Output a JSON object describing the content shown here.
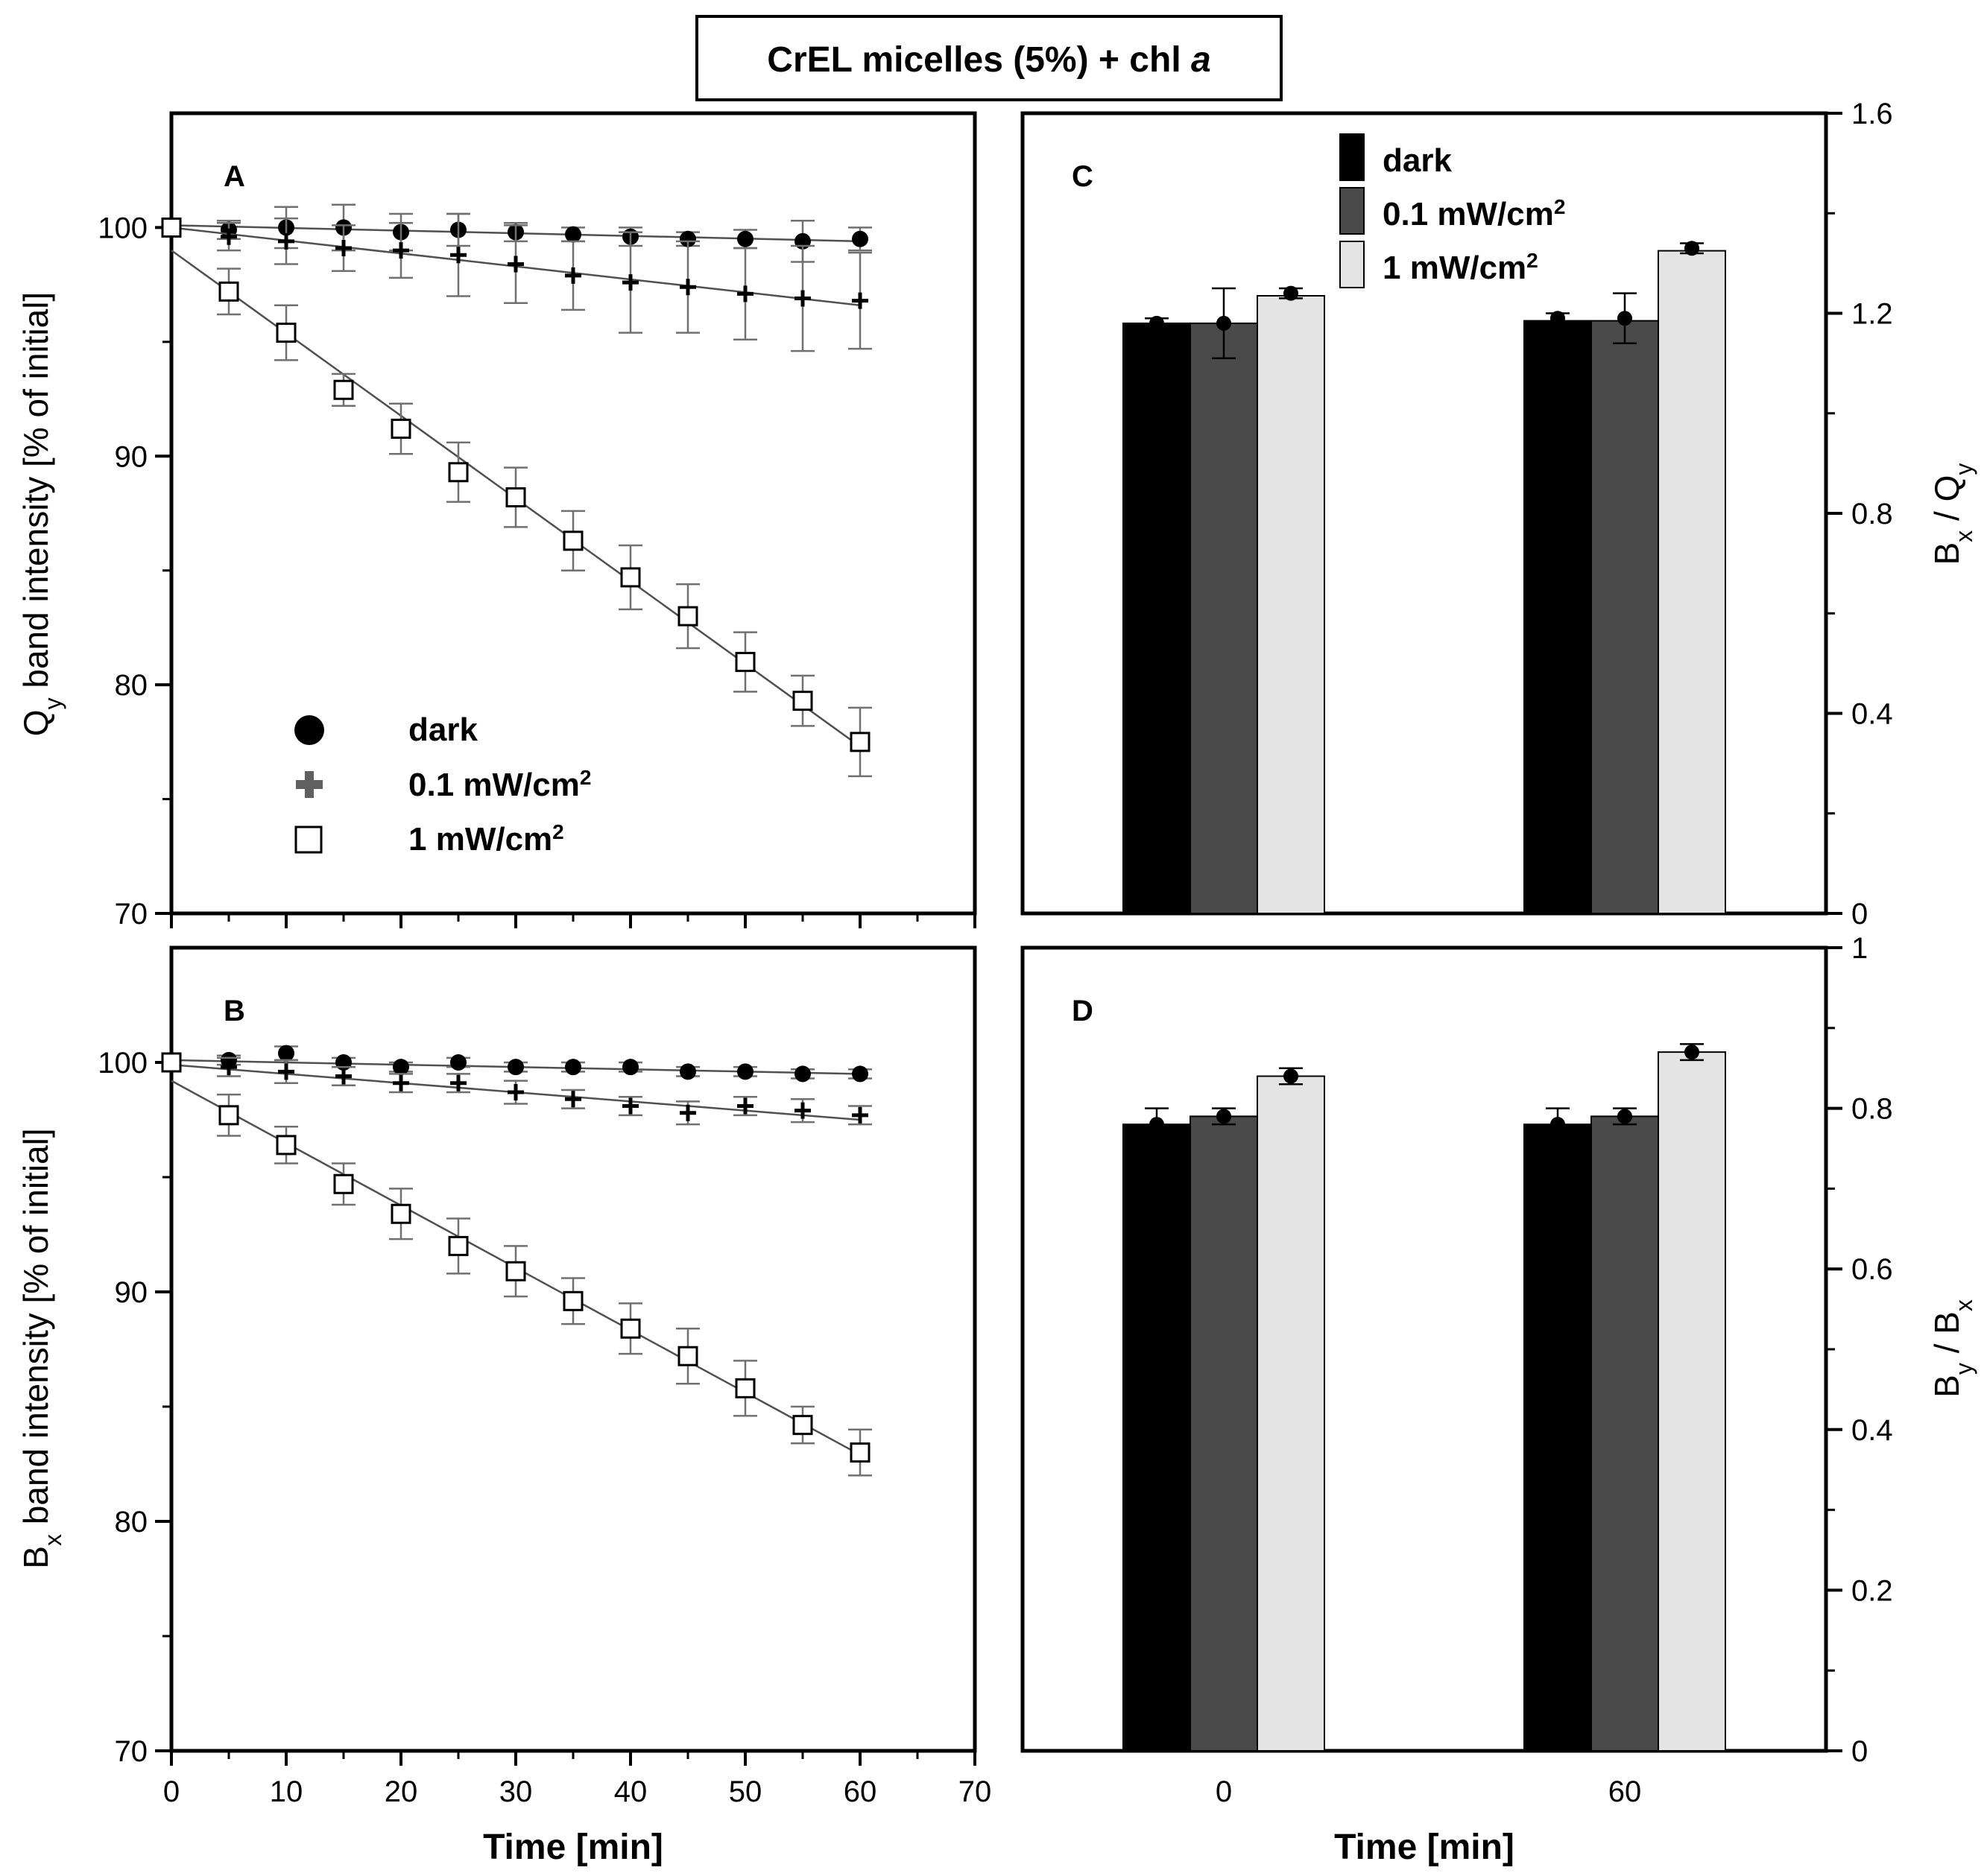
{
  "figure_title": {
    "main": "CrEL micelles (5%) + chl ",
    "italic": "a"
  },
  "colors": {
    "dark": "#000000",
    "low": "#4a4a4a",
    "high": "#e4e4e4",
    "err": "#707070",
    "fit": "#505050"
  },
  "chart_data": [
    {
      "panel": "A",
      "type": "scatter",
      "x": [
        0,
        5,
        10,
        15,
        20,
        25,
        30,
        35,
        40,
        45,
        50,
        55,
        60
      ],
      "xlim": [
        0,
        70
      ],
      "xticks": [
        0,
        10,
        20,
        30,
        40,
        50,
        60,
        70
      ],
      "ylim": [
        70,
        105
      ],
      "yticks": [
        70,
        80,
        90,
        100
      ],
      "ylabel": {
        "main": "Q",
        "sub": "y",
        "rest": " band intensity [% of initial]"
      },
      "xlabel": "",
      "series": [
        {
          "name": "dark",
          "marker": "circle",
          "values": [
            100,
            99.9,
            100.0,
            100.0,
            99.8,
            99.9,
            99.8,
            99.7,
            99.6,
            99.5,
            99.5,
            99.4,
            99.5
          ],
          "errors": [
            0,
            0.4,
            0.9,
            1.0,
            0.8,
            0.7,
            0.4,
            0.3,
            0.4,
            0.3,
            0.4,
            0.9,
            0.5
          ],
          "fit": [
            100.1,
            99.4
          ]
        },
        {
          "name": "0.1 mW/cm²",
          "marker": "plus",
          "values": [
            100,
            99.6,
            99.4,
            99.1,
            99.0,
            98.8,
            98.4,
            97.9,
            97.6,
            97.4,
            97.1,
            96.9,
            96.8
          ],
          "errors": [
            0,
            0.6,
            1.0,
            1.0,
            1.2,
            1.8,
            1.7,
            1.5,
            2.2,
            2.0,
            2.0,
            2.3,
            2.1
          ],
          "fit": [
            100.0,
            96.6
          ]
        },
        {
          "name": "1 mW/cm²",
          "marker": "square",
          "values": [
            100,
            97.2,
            95.4,
            92.9,
            91.2,
            89.3,
            88.2,
            86.3,
            84.7,
            83.0,
            81.0,
            79.3,
            77.5
          ],
          "errors": [
            0,
            1.0,
            1.2,
            0.7,
            1.1,
            1.3,
            1.3,
            1.3,
            1.4,
            1.4,
            1.3,
            1.1,
            1.5
          ],
          "fit": [
            99.0,
            77.3
          ]
        }
      ],
      "legend": [
        {
          "label": "dark",
          "marker": "circle"
        },
        {
          "label": "0.1 mW/cm",
          "sup": "2",
          "marker": "plus"
        },
        {
          "label": "1 mW/cm",
          "sup": "2",
          "marker": "square"
        }
      ]
    },
    {
      "panel": "B",
      "type": "scatter",
      "x": [
        0,
        5,
        10,
        15,
        20,
        25,
        30,
        35,
        40,
        45,
        50,
        55,
        60
      ],
      "xlim": [
        0,
        70
      ],
      "xticks": [
        0,
        10,
        20,
        30,
        40,
        50,
        60,
        70
      ],
      "xticklabels": [
        "0",
        "10",
        "20",
        "30",
        "40",
        "50",
        "60",
        "70"
      ],
      "ylim": [
        70,
        105
      ],
      "yticks": [
        70,
        80,
        90,
        100
      ],
      "ylabel": {
        "main": "B",
        "sub": "x",
        "rest": " band intensity [% of initial]"
      },
      "xlabel": "Time [min]",
      "series": [
        {
          "name": "dark",
          "marker": "circle",
          "values": [
            100,
            100.1,
            100.4,
            100.0,
            99.8,
            100.0,
            99.8,
            99.8,
            99.8,
            99.6,
            99.6,
            99.5,
            99.5
          ],
          "errors": [
            0,
            0.2,
            0.3,
            0.2,
            0.2,
            0.2,
            0.2,
            0.2,
            0.2,
            0.2,
            0.2,
            0.2,
            0.2
          ],
          "fit": [
            100.1,
            99.5
          ]
        },
        {
          "name": "0.1 mW/cm²",
          "marker": "plus",
          "values": [
            100,
            99.8,
            99.6,
            99.4,
            99.1,
            99.1,
            98.7,
            98.4,
            98.1,
            97.8,
            98.1,
            97.9,
            97.7
          ],
          "errors": [
            0,
            0.4,
            0.5,
            0.4,
            0.4,
            0.4,
            0.5,
            0.4,
            0.4,
            0.5,
            0.4,
            0.5,
            0.4
          ],
          "fit": [
            99.9,
            97.5
          ]
        },
        {
          "name": "1 mW/cm²",
          "marker": "square",
          "values": [
            100,
            97.7,
            96.4,
            94.7,
            93.4,
            92.0,
            90.9,
            89.6,
            88.4,
            87.2,
            85.8,
            84.2,
            83.0
          ],
          "errors": [
            0,
            0.9,
            0.8,
            0.9,
            1.1,
            1.2,
            1.1,
            1.0,
            1.1,
            1.2,
            1.2,
            0.8,
            1.0
          ],
          "fit": [
            99.2,
            82.9
          ]
        }
      ]
    },
    {
      "panel": "C",
      "type": "bar",
      "categories": [
        "0",
        "60"
      ],
      "ylim": [
        0,
        1.6
      ],
      "yticks": [
        0,
        0.4,
        0.8,
        1.2,
        1.6
      ],
      "ylabel": {
        "a": "B",
        "a_sub": "x",
        "mid": " / Q",
        "b_sub": "y"
      },
      "series": [
        {
          "name": "dark",
          "values": [
            1.18,
            1.185
          ],
          "points": [
            1.18,
            1.19
          ],
          "errors": [
            0.01,
            0.01
          ]
        },
        {
          "name": "0.1 mW/cm²",
          "values": [
            1.18,
            1.185
          ],
          "points": [
            1.18,
            1.19
          ],
          "errors": [
            0.07,
            0.05
          ]
        },
        {
          "name": "1 mW/cm²",
          "values": [
            1.235,
            1.325
          ],
          "points": [
            1.24,
            1.33
          ],
          "errors": [
            0.01,
            0.01
          ]
        }
      ],
      "legend": [
        {
          "label": "dark"
        },
        {
          "label": "0.1 mW/cm",
          "sup": "2"
        },
        {
          "label": "1 mW/cm",
          "sup": "2"
        }
      ]
    },
    {
      "panel": "D",
      "type": "bar",
      "categories": [
        "0",
        "60"
      ],
      "xlabel": "Time [min]",
      "ylim": [
        0,
        1
      ],
      "yticks": [
        0,
        0.2,
        0.4,
        0.6,
        0.8,
        1
      ],
      "ylabel": {
        "a": "B",
        "a_sub": "y",
        "mid": " / B",
        "b_sub": "x"
      },
      "series": [
        {
          "name": "dark",
          "values": [
            0.78,
            0.78
          ],
          "points": [
            0.78,
            0.78
          ],
          "errors": [
            0.02,
            0.02
          ]
        },
        {
          "name": "0.1 mW/cm²",
          "values": [
            0.79,
            0.79
          ],
          "points": [
            0.79,
            0.79
          ],
          "errors": [
            0.01,
            0.01
          ]
        },
        {
          "name": "1 mW/cm²",
          "values": [
            0.84,
            0.87
          ],
          "points": [
            0.84,
            0.87
          ],
          "errors": [
            0.01,
            0.01
          ]
        }
      ]
    }
  ]
}
